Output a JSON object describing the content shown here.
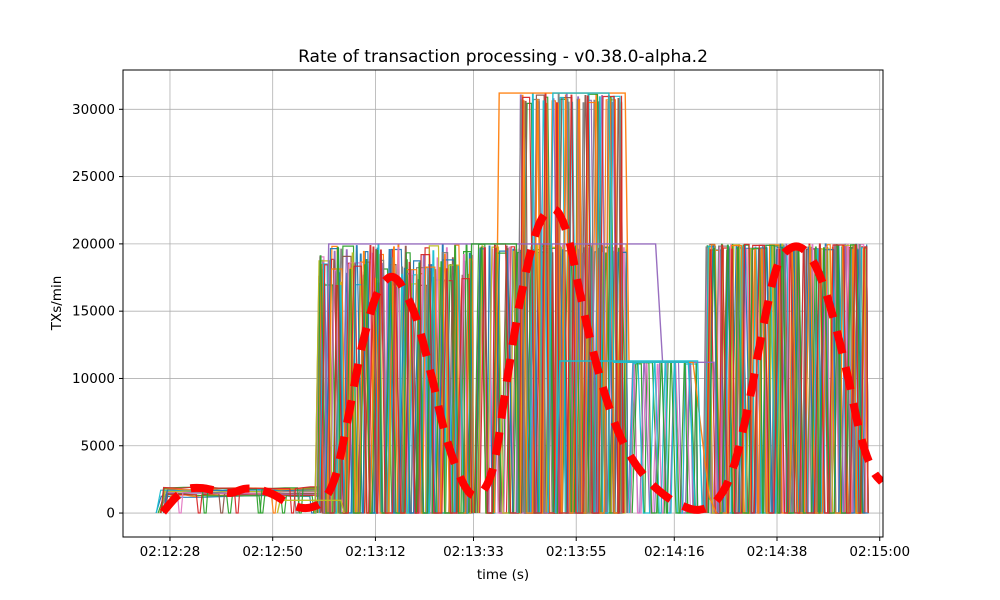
{
  "figure": {
    "background": "#ffffff"
  },
  "chart_data": {
    "type": "line",
    "title": "Rate of transaction processing  -  v0.38.0-alpha.2",
    "xlabel": "time (s)",
    "ylabel": "TXs/min",
    "grid": true,
    "legend": "none",
    "x_axis": {
      "tick_labels": [
        "02:12:28",
        "02:12:50",
        "02:13:12",
        "02:13:33",
        "02:13:55",
        "02:14:16",
        "02:14:38",
        "02:15:00"
      ],
      "tick_seconds": [
        0,
        22,
        44,
        65,
        87,
        108,
        130,
        152
      ],
      "lim_seconds": [
        -10.06,
        152.7
      ]
    },
    "y_axis": {
      "ticks": [
        0,
        5000,
        10000,
        15000,
        20000,
        25000,
        30000
      ],
      "lim": [
        -1780,
        32920
      ]
    },
    "aggregate_trend": {
      "name": "smoothed-throughput-trend",
      "color": "#ff0000",
      "style": "dashed",
      "line_width": 8,
      "x_seconds": [
        -1.5,
        1.5,
        4,
        7,
        10,
        13,
        16,
        19,
        22,
        25,
        28,
        30.5,
        33,
        35.5,
        38,
        41,
        44,
        46.5,
        48.5,
        50.5,
        53,
        56,
        59,
        62,
        64.5,
        67,
        69.5,
        72,
        75,
        78,
        80.5,
        83,
        85.5,
        88,
        91,
        94.5,
        98,
        102,
        106,
        110,
        113.5,
        117,
        120.5,
        124,
        127,
        130,
        133,
        136,
        139,
        142,
        145,
        148,
        150.5,
        152.5
      ],
      "y": [
        80,
        1250,
        1800,
        1850,
        1650,
        1500,
        1800,
        1750,
        1400,
        800,
        400,
        450,
        1000,
        2800,
        6800,
        12200,
        16000,
        17400,
        17400,
        16300,
        14200,
        10200,
        5800,
        2800,
        1400,
        1600,
        3800,
        9500,
        15800,
        20400,
        22300,
        22400,
        20200,
        16000,
        11500,
        7400,
        4600,
        2600,
        1300,
        500,
        250,
        900,
        3200,
        8200,
        13800,
        18300,
        19700,
        19500,
        17800,
        14600,
        10400,
        5600,
        3200,
        2300
      ]
    },
    "worker_series": {
      "description": "Dense overlapping per-worker throughput lines oscillating between 0 and the phase plateau values",
      "count": 14,
      "palette": [
        "#1f77b4",
        "#ff7f0e",
        "#2ca02c",
        "#d62728",
        "#9467bd",
        "#8c564b",
        "#e377c2",
        "#7f7f7f",
        "#bcbd22",
        "#17becf"
      ],
      "phases": [
        {
          "name": "warmup-band",
          "mode": "band",
          "t0": -3,
          "t1": 32.5,
          "low": 1250,
          "high": 1900
        },
        {
          "name": "burst-1",
          "mode": "spikes",
          "t0": 31,
          "t1": 65,
          "top_min": 16800,
          "top_max": 20000
        },
        {
          "name": "burst-2-20k",
          "mode": "spikes",
          "t0": 65,
          "t1": 98,
          "top_min": 19300,
          "top_max": 20000,
          "workers": [
            0,
            2,
            3,
            5,
            6,
            8,
            10,
            12,
            13
          ]
        },
        {
          "name": "burst-2-tall",
          "mode": "spikes",
          "t0": 74,
          "t1": 97,
          "top_min": 30400,
          "top_max": 31200,
          "workers": [
            1,
            2,
            4,
            5,
            7,
            9,
            11,
            13
          ]
        },
        {
          "name": "taper-11k",
          "mode": "spikes",
          "t0": 98,
          "t1": 113,
          "top_min": 11050,
          "top_max": 11250,
          "workers": [
            2,
            4,
            6,
            9,
            12
          ]
        },
        {
          "name": "burst-3",
          "mode": "spikes",
          "t0": 114,
          "t1": 149.5,
          "top_min": 19500,
          "top_max": 20000
        }
      ],
      "cap_lines": [
        {
          "label": "plateau-20000-long",
          "color": "#9467bd",
          "points": [
            [
              33,
              0
            ],
            [
              34,
              20000
            ],
            [
              104,
              20000
            ],
            [
              105.5,
              11200
            ],
            [
              116.5,
              11200
            ],
            [
              117.5,
              0
            ]
          ]
        },
        {
          "label": "plateau-31200-orange",
          "color": "#ff7f0e",
          "points": [
            [
              69.5,
              0
            ],
            [
              70.5,
              31200
            ],
            [
              97.5,
              31200
            ],
            [
              98.3,
              11200
            ],
            [
              112,
              11200
            ],
            [
              115.5,
              1200
            ],
            [
              117,
              0
            ]
          ]
        },
        {
          "label": "plateau-31200-teal",
          "color": "#17becf",
          "points": [
            [
              81,
              0
            ],
            [
              82,
              31200
            ],
            [
              94,
              31200
            ],
            [
              95,
              11200
            ],
            [
              111,
              11200
            ],
            [
              112.5,
              0
            ]
          ]
        },
        {
          "label": "plateau-11200-band",
          "color": "#17becf",
          "points": [
            [
              82.5,
              0
            ],
            [
              83.5,
              11300
            ],
            [
              113,
              11300
            ],
            [
              114,
              0
            ]
          ]
        },
        {
          "label": "plateau-20000-green",
          "color": "#2ca02c",
          "points": [
            [
              64,
              0
            ],
            [
              64.6,
              20000
            ],
            [
              74.2,
              20000
            ],
            [
              74.8,
              0
            ]
          ]
        },
        {
          "label": "warmup-low-olive",
          "color": "#bcbd22",
          "points": [
            [
              23,
              0
            ],
            [
              23.6,
              950
            ],
            [
              36.6,
              950
            ],
            [
              37.3,
              0
            ]
          ]
        }
      ]
    }
  }
}
